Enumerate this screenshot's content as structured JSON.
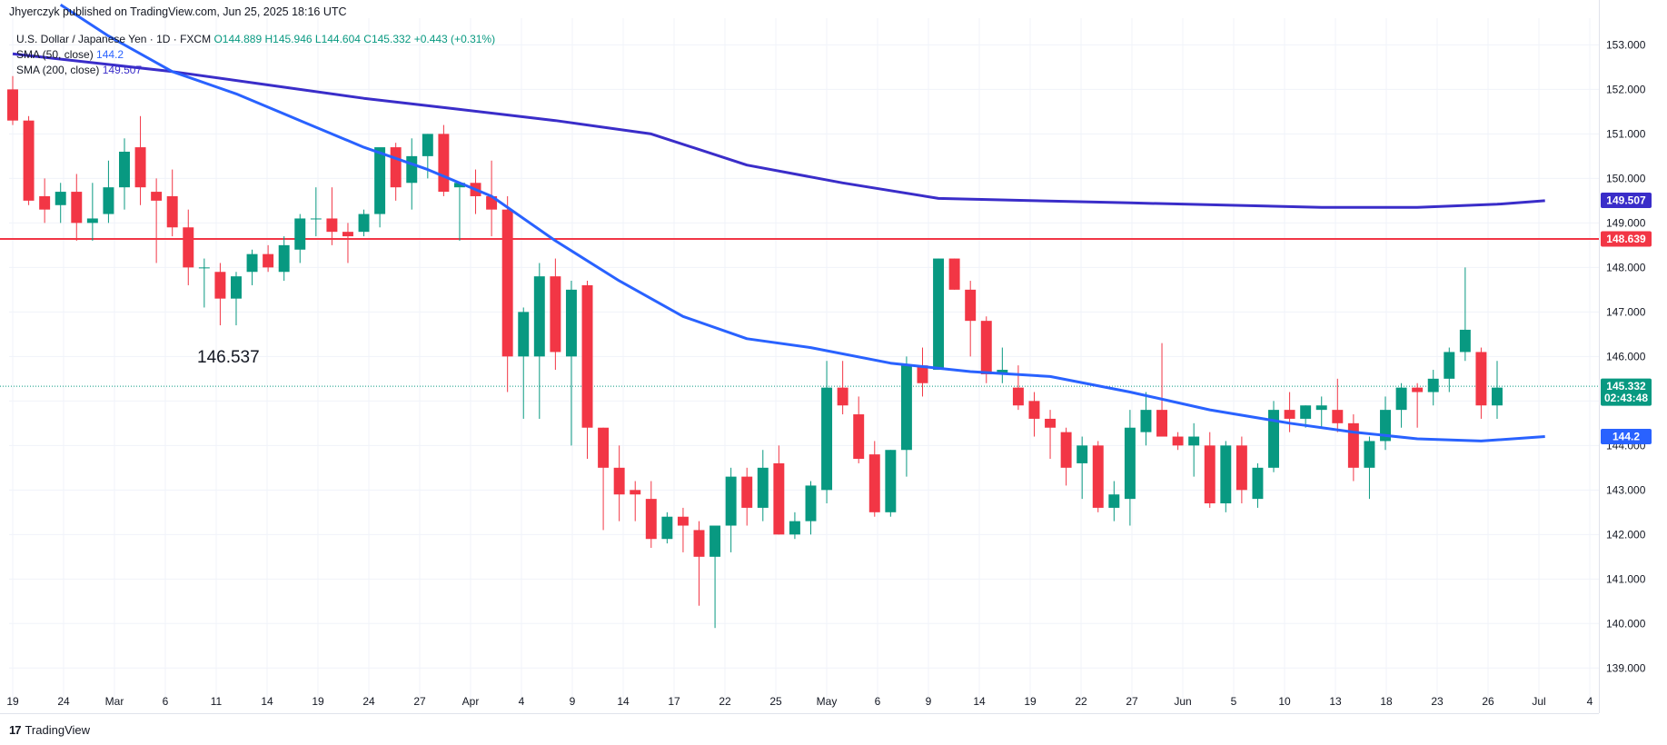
{
  "header": {
    "publisher": "Jhyerczyk published on TradingView.com, Jun 25, 2025 18:16 UTC"
  },
  "legend": {
    "symbol": "U.S. Dollar / Japanese Yen · 1D · FXCM",
    "o": "O144.889",
    "h": "H145.946",
    "l": "L144.604",
    "c": "C145.332",
    "change": "+0.443 (+0.31%)",
    "sma50_label": "SMA (50, close)",
    "sma50_value": "144.2",
    "sma200_label": "SMA (200, close)",
    "sma200_value": "149.507"
  },
  "annotation": "146.537",
  "footer": {
    "logo": "17",
    "brand": "TradingView"
  },
  "colors": {
    "up": "#089981",
    "down": "#f23645",
    "sma50": "#2962ff",
    "sma200": "#3a2dc9",
    "resistance": "#f23645"
  },
  "chart_data": {
    "type": "candlestick",
    "ylim": [
      138.7,
      153.6
    ],
    "y_ticks": [
      "139.000",
      "140.000",
      "141.000",
      "142.000",
      "143.000",
      "144.000",
      "145.000",
      "146.000",
      "147.000",
      "148.000",
      "149.000",
      "150.000",
      "151.000",
      "152.000",
      "153.000"
    ],
    "x_ticks": [
      "19",
      "24",
      "Mar",
      "6",
      "11",
      "14",
      "19",
      "24",
      "27",
      "Apr",
      "4",
      "9",
      "14",
      "17",
      "22",
      "25",
      "May",
      "6",
      "9",
      "14",
      "19",
      "22",
      "27",
      "Jun",
      "5",
      "10",
      "13",
      "18",
      "23",
      "26",
      "Jul",
      "4"
    ],
    "candles": [
      [
        152.0,
        152.3,
        151.2,
        151.3
      ],
      [
        151.3,
        151.4,
        149.4,
        149.5
      ],
      [
        149.6,
        150.0,
        149.0,
        149.3
      ],
      [
        149.4,
        149.9,
        149.0,
        149.7
      ],
      [
        149.7,
        150.1,
        148.6,
        149.0
      ],
      [
        149.0,
        149.9,
        148.6,
        149.1
      ],
      [
        149.2,
        150.4,
        149.0,
        149.8
      ],
      [
        149.8,
        150.9,
        149.3,
        150.6
      ],
      [
        150.7,
        151.4,
        149.4,
        149.8
      ],
      [
        149.7,
        150.0,
        148.1,
        149.5
      ],
      [
        149.6,
        150.2,
        148.7,
        148.9
      ],
      [
        148.9,
        149.3,
        147.6,
        148.0
      ],
      [
        148.0,
        148.2,
        147.1,
        148.0
      ],
      [
        147.9,
        148.1,
        146.7,
        147.3
      ],
      [
        147.3,
        147.9,
        146.7,
        147.8
      ],
      [
        147.9,
        148.4,
        147.6,
        148.3
      ],
      [
        148.3,
        148.5,
        147.9,
        148.0
      ],
      [
        147.9,
        148.7,
        147.7,
        148.5
      ],
      [
        148.4,
        149.2,
        148.1,
        149.1
      ],
      [
        149.1,
        149.8,
        148.7,
        149.1
      ],
      [
        149.1,
        149.8,
        148.5,
        148.8
      ],
      [
        148.8,
        149.0,
        148.1,
        148.7
      ],
      [
        148.8,
        149.3,
        148.7,
        149.2
      ],
      [
        149.2,
        150.6,
        148.9,
        150.7
      ],
      [
        150.7,
        150.8,
        149.5,
        149.8
      ],
      [
        149.9,
        150.9,
        149.3,
        150.5
      ],
      [
        150.5,
        151.0,
        150.0,
        151.0
      ],
      [
        151.0,
        151.2,
        149.6,
        149.7
      ],
      [
        149.8,
        149.8,
        148.6,
        149.9
      ],
      [
        149.9,
        150.2,
        149.2,
        149.6
      ],
      [
        149.6,
        150.4,
        148.7,
        149.3
      ],
      [
        149.3,
        149.6,
        145.2,
        146.0
      ],
      [
        146.0,
        147.1,
        144.6,
        147.0
      ],
      [
        146.0,
        148.1,
        144.6,
        147.8
      ],
      [
        147.8,
        148.2,
        145.7,
        146.1
      ],
      [
        146.0,
        147.7,
        144.0,
        147.5
      ],
      [
        147.6,
        147.7,
        143.7,
        144.4
      ],
      [
        144.4,
        144.4,
        142.1,
        143.5
      ],
      [
        143.5,
        144.0,
        142.3,
        142.9
      ],
      [
        143.0,
        143.2,
        142.3,
        142.9
      ],
      [
        142.8,
        143.2,
        141.7,
        141.9
      ],
      [
        141.9,
        142.5,
        141.8,
        142.4
      ],
      [
        142.4,
        142.6,
        141.6,
        142.2
      ],
      [
        142.1,
        142.3,
        140.4,
        141.5
      ],
      [
        141.5,
        142.1,
        139.9,
        142.2
      ],
      [
        142.2,
        143.5,
        141.6,
        143.3
      ],
      [
        143.3,
        143.5,
        142.2,
        142.6
      ],
      [
        142.6,
        143.9,
        142.3,
        143.5
      ],
      [
        143.6,
        144.0,
        142.0,
        142.0
      ],
      [
        142.0,
        142.5,
        141.9,
        142.3
      ],
      [
        142.3,
        143.2,
        142.0,
        143.1
      ],
      [
        143.0,
        145.9,
        142.7,
        145.3
      ],
      [
        145.3,
        145.9,
        144.7,
        144.9
      ],
      [
        144.7,
        145.1,
        143.6,
        143.7
      ],
      [
        143.8,
        144.1,
        142.4,
        142.5
      ],
      [
        142.5,
        143.9,
        142.4,
        143.9
      ],
      [
        143.9,
        146.0,
        143.3,
        145.8
      ],
      [
        145.8,
        146.2,
        145.1,
        145.4
      ],
      [
        145.7,
        148.2,
        145.7,
        148.2
      ],
      [
        148.2,
        148.2,
        147.5,
        147.5
      ],
      [
        147.5,
        147.7,
        146.0,
        146.8
      ],
      [
        146.8,
        146.9,
        145.4,
        145.6
      ],
      [
        145.6,
        146.2,
        145.4,
        145.7
      ],
      [
        145.3,
        145.8,
        144.8,
        144.9
      ],
      [
        145.0,
        145.2,
        144.2,
        144.6
      ],
      [
        144.6,
        144.8,
        143.7,
        144.4
      ],
      [
        144.3,
        144.4,
        143.1,
        143.5
      ],
      [
        143.6,
        144.2,
        142.8,
        144.0
      ],
      [
        144.0,
        144.1,
        142.5,
        142.6
      ],
      [
        142.6,
        143.2,
        142.3,
        142.9
      ],
      [
        142.8,
        144.8,
        142.2,
        144.4
      ],
      [
        144.3,
        145.2,
        144.0,
        144.8
      ],
      [
        144.8,
        146.3,
        144.3,
        144.2
      ],
      [
        144.2,
        144.3,
        143.9,
        144.0
      ],
      [
        144.0,
        144.5,
        143.3,
        144.2
      ],
      [
        144.0,
        144.3,
        142.6,
        142.7
      ],
      [
        142.7,
        144.1,
        142.5,
        144.0
      ],
      [
        144.0,
        144.2,
        142.7,
        143.0
      ],
      [
        142.8,
        143.6,
        142.6,
        143.5
      ],
      [
        143.5,
        145.0,
        143.4,
        144.8
      ],
      [
        144.8,
        145.2,
        144.3,
        144.6
      ],
      [
        144.6,
        144.9,
        144.4,
        144.9
      ],
      [
        144.8,
        145.1,
        144.4,
        144.9
      ],
      [
        144.8,
        145.5,
        144.3,
        144.5
      ],
      [
        144.5,
        144.7,
        143.2,
        143.5
      ],
      [
        143.5,
        144.2,
        142.8,
        144.1
      ],
      [
        144.1,
        145.1,
        143.9,
        144.8
      ],
      [
        144.8,
        145.4,
        144.4,
        145.3
      ],
      [
        145.3,
        145.4,
        144.4,
        145.2
      ],
      [
        145.2,
        145.7,
        144.9,
        145.5
      ],
      [
        145.5,
        146.2,
        145.2,
        146.1
      ],
      [
        146.1,
        148.0,
        145.9,
        146.6
      ],
      [
        146.1,
        146.2,
        144.6,
        144.9
      ],
      [
        144.9,
        145.9,
        144.6,
        145.3
      ]
    ],
    "sma50": [
      [
        3,
        153.9
      ],
      [
        6,
        153.2
      ],
      [
        10,
        152.4
      ],
      [
        14,
        151.9
      ],
      [
        18,
        151.3
      ],
      [
        22,
        150.7
      ],
      [
        26,
        150.2
      ],
      [
        30,
        149.6
      ],
      [
        34,
        148.6
      ],
      [
        38,
        147.7
      ],
      [
        42,
        146.9
      ],
      [
        46,
        146.4
      ],
      [
        50,
        146.2
      ],
      [
        55,
        145.85
      ],
      [
        60,
        145.66
      ],
      [
        65,
        145.55
      ],
      [
        70,
        145.2
      ],
      [
        75,
        144.8
      ],
      [
        80,
        144.5
      ],
      [
        84,
        144.3
      ],
      [
        88,
        144.15
      ],
      [
        92,
        144.1
      ],
      [
        96,
        144.2
      ]
    ],
    "sma200": [
      [
        0,
        152.8
      ],
      [
        10,
        152.4
      ],
      [
        16,
        152.1
      ],
      [
        22,
        151.8
      ],
      [
        28,
        151.55
      ],
      [
        34,
        151.3
      ],
      [
        40,
        151.0
      ],
      [
        46,
        150.3
      ],
      [
        52,
        149.9
      ],
      [
        58,
        149.55
      ],
      [
        64,
        149.5
      ],
      [
        70,
        149.45
      ],
      [
        76,
        149.4
      ],
      [
        82,
        149.35
      ],
      [
        88,
        149.35
      ],
      [
        93,
        149.42
      ],
      [
        96,
        149.5
      ]
    ],
    "resistance": 148.639,
    "last_price": 145.332,
    "price_labels": [
      {
        "value": 149.507,
        "text": "149.507",
        "color": "#3a2dc9",
        "sub": ""
      },
      {
        "value": 148.639,
        "text": "148.639",
        "color": "#f23645",
        "sub": ""
      },
      {
        "value": 145.332,
        "text": "145.332",
        "color": "#089981",
        "sub": "02:43:48"
      },
      {
        "value": 144.2,
        "text": "144.2",
        "color": "#2962ff",
        "sub": ""
      }
    ],
    "grid": true
  }
}
